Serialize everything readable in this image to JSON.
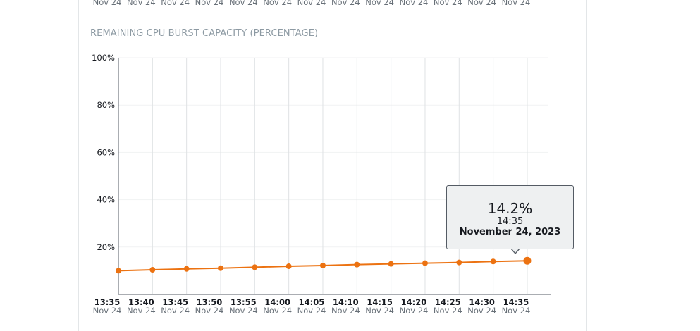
{
  "top_strip_dates": [
    "Nov 24",
    "Nov 24",
    "Nov 24",
    "Nov 24",
    "Nov 24",
    "Nov 24",
    "Nov 24",
    "Nov 24",
    "Nov 24",
    "Nov 24",
    "Nov 24",
    "Nov 24",
    "Nov 24"
  ],
  "panel": {
    "title": "REMAINING CPU BURST CAPACITY (PERCENTAGE)"
  },
  "chart_data": {
    "type": "line",
    "title": "REMAINING CPU BURST CAPACITY (PERCENTAGE)",
    "xlabel": "",
    "ylabel": "",
    "categories": [
      "13:35",
      "13:40",
      "13:45",
      "13:50",
      "13:55",
      "14:00",
      "14:05",
      "14:10",
      "14:15",
      "14:20",
      "14:25",
      "14:30",
      "14:35"
    ],
    "category_dates": [
      "Nov 24",
      "Nov 24",
      "Nov 24",
      "Nov 24",
      "Nov 24",
      "Nov 24",
      "Nov 24",
      "Nov 24",
      "Nov 24",
      "Nov 24",
      "Nov 24",
      "Nov 24",
      "Nov 24"
    ],
    "series": [
      {
        "values": [
          10.0,
          10.4,
          10.8,
          11.1,
          11.5,
          11.9,
          12.2,
          12.6,
          12.9,
          13.2,
          13.5,
          13.9,
          14.2
        ]
      }
    ],
    "ylim": [
      0,
      100
    ],
    "yticks": [
      20,
      40,
      60,
      80,
      100
    ],
    "ytick_labels": [
      "20%",
      "40%",
      "60%",
      "80%",
      "100%"
    ],
    "grid": true,
    "line_color": "#ec7211"
  },
  "tooltip": {
    "value": "14.2%",
    "time": "14:35",
    "date": "November 24, 2023"
  }
}
